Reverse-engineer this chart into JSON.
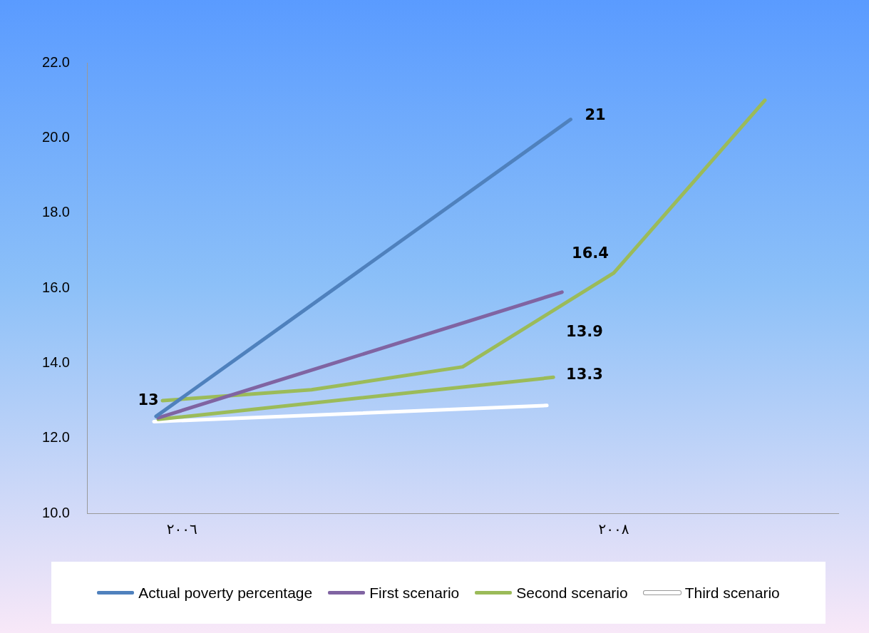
{
  "chart_data": {
    "type": "line",
    "xlim": [
      2005.56,
      2009.04
    ],
    "xticks": [
      {
        "value": 2006,
        "label": "٢٠٠٦"
      },
      {
        "value": 2008,
        "label": "٢٠٠٨"
      }
    ],
    "ylim": [
      10,
      22
    ],
    "yticks": [
      {
        "value": 10,
        "label": "10.0"
      },
      {
        "value": 12,
        "label": "12.0"
      },
      {
        "value": 14,
        "label": "14.0"
      },
      {
        "value": 16,
        "label": "16.0"
      },
      {
        "value": 18,
        "label": "18.0"
      },
      {
        "value": 20,
        "label": "20.0"
      },
      {
        "value": 22,
        "label": "22.0"
      }
    ],
    "grid": false,
    "legend": "bottom",
    "marker": "none",
    "line_style": "solid",
    "series": [
      {
        "name": "Actual poverty percentage",
        "color": "#4f81bd",
        "x": [
          2005.88,
          2007.8
        ],
        "values": [
          12.58,
          20.49
        ]
      },
      {
        "name": "First scenario",
        "color": "#8064a2",
        "x": [
          2005.89,
          2007.76
        ],
        "values": [
          12.54,
          15.89
        ]
      },
      {
        "name": "Second scenario",
        "color": "#9bbb59",
        "x": [
          2005.91,
          2006.6,
          2007.3,
          2008.0,
          2008.7
        ],
        "values": [
          13.0,
          13.29,
          13.9,
          16.4,
          21.0
        ]
      },
      {
        "color": "#9bbb59",
        "x": [
          2005.89,
          2007.72
        ],
        "values": [
          12.5,
          13.62
        ]
      },
      {
        "name": "Third scenario",
        "color": "#ffffff",
        "x": [
          2005.87,
          2007.69
        ],
        "values": [
          12.44,
          12.87
        ]
      }
    ],
    "annotations": [
      "21",
      "16.4",
      "13.9",
      "13.3",
      "13"
    ]
  }
}
